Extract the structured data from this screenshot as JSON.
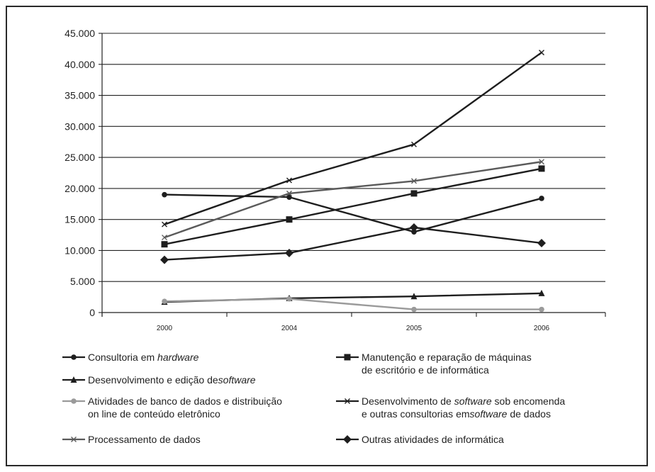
{
  "chart_data": {
    "type": "line",
    "categories": [
      "2000",
      "2004",
      "2005",
      "2006"
    ],
    "ylim": [
      0,
      45000
    ],
    "yticks": [
      "0",
      "5.000",
      "10.000",
      "15.000",
      "20.000",
      "25.000",
      "30.000",
      "35.000",
      "40.000",
      "45.000"
    ],
    "grid": "horizontal",
    "legend_placement": "bottom",
    "series": [
      {
        "name": "Consultoria em hardware",
        "marker": "circle",
        "color": "#1e1e1e",
        "values": [
          19000,
          18600,
          13000,
          18400
        ]
      },
      {
        "name": "Manutenção e reparação de máquinas de escritório e de informática",
        "marker": "square",
        "color": "#1e1e1e",
        "values": [
          11000,
          15000,
          19200,
          23200
        ]
      },
      {
        "name": "Desenvolvimento e edição de software",
        "marker": "triangle",
        "color": "#1e1e1e",
        "values": [
          1700,
          2300,
          2600,
          3100
        ]
      },
      {
        "name": "Atividades de banco de dados e distribuição on line de conteúdo eletrônico",
        "marker": "circle",
        "color": "#9a9a9a",
        "values": [
          1800,
          2200,
          500,
          500
        ]
      },
      {
        "name": "Desenvolvimento de software sob encomenda e outras consultorias em software de dados",
        "marker": "x",
        "color": "#1e1e1e",
        "values": [
          14200,
          21300,
          27100,
          41900
        ]
      },
      {
        "name": "Processamento de dados",
        "marker": "x",
        "color": "#5a5a5a",
        "values": [
          12100,
          19200,
          21200,
          24300
        ]
      },
      {
        "name": "Outras atividades de informática",
        "marker": "diamond",
        "color": "#1e1e1e",
        "values": [
          8500,
          9600,
          13700,
          11200
        ]
      }
    ]
  },
  "legend": {
    "consultoria": {
      "pre": "Consultoria em ",
      "em": "hardware"
    },
    "manutencao": {
      "line1": "Manutenção e reparação de máquinas",
      "line2": "de escritório e de informática"
    },
    "desenv_edicao": {
      "pre": "Desenvolvimento e edição de",
      "em": "software"
    },
    "banco_dados": {
      "line1": "Atividades de banco de dados e distribuição",
      "line2": "on line de conteúdo eletrônico"
    },
    "desenv_encomenda": {
      "l1_pre": "Desenvolvimento de ",
      "l1_em": "software",
      "l1_post": " sob encomenda",
      "l2_pre": "e outras consultorias em",
      "l2_em": "software",
      "l2_post": " de dados"
    },
    "processamento": {
      "text": "Processamento de dados"
    },
    "outras": {
      "text": "Outras atividades de informática"
    }
  }
}
